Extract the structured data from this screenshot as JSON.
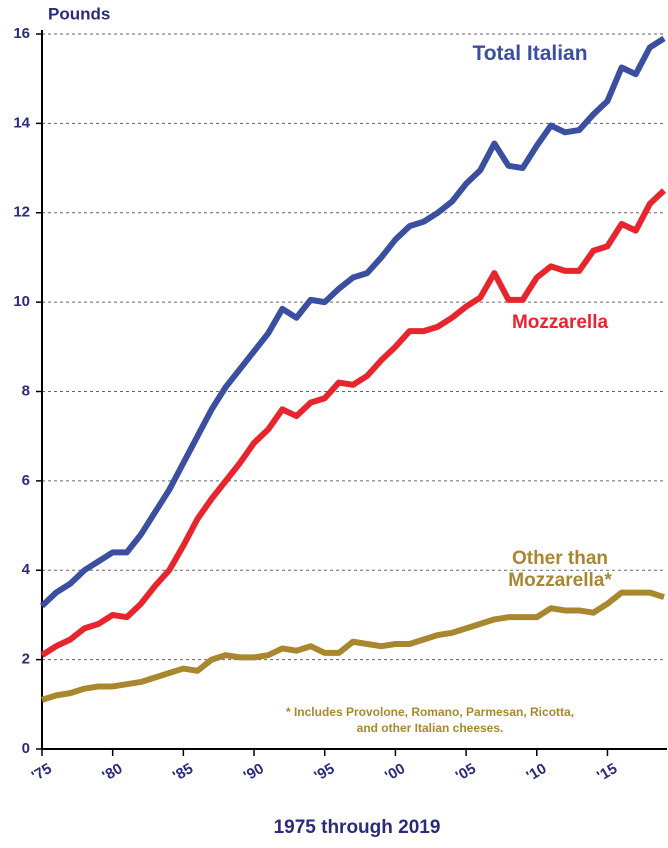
{
  "chart_data": {
    "type": "line",
    "y_label": "Pounds",
    "x_label": "1975 through 2019",
    "footnote": "* Includes Provolone, Romano, Parmesan, Ricotta, and other Italian cheeses.",
    "x": [
      1975,
      1976,
      1977,
      1978,
      1979,
      1980,
      1981,
      1982,
      1983,
      1984,
      1985,
      1986,
      1987,
      1988,
      1989,
      1990,
      1991,
      1992,
      1993,
      1994,
      1995,
      1996,
      1997,
      1998,
      1999,
      2000,
      2001,
      2002,
      2003,
      2004,
      2005,
      2006,
      2007,
      2008,
      2009,
      2010,
      2011,
      2012,
      2013,
      2014,
      2015,
      2016,
      2017,
      2018,
      2019
    ],
    "series": [
      {
        "name": "Total Italian",
        "color": "#3b4fa1",
        "values": [
          3.2,
          3.5,
          3.7,
          4.0,
          4.2,
          4.4,
          4.4,
          4.8,
          5.3,
          5.8,
          6.4,
          7.0,
          7.6,
          8.1,
          8.5,
          8.9,
          9.3,
          9.85,
          9.65,
          10.05,
          10.0,
          10.3,
          10.55,
          10.65,
          11.0,
          11.4,
          11.7,
          11.8,
          12.0,
          12.25,
          12.65,
          12.95,
          13.55,
          13.05,
          13.0,
          13.5,
          13.95,
          13.8,
          13.85,
          14.2,
          14.5,
          15.25,
          15.1,
          15.7,
          15.9
        ]
      },
      {
        "name": "Mozzarella",
        "color": "#e8252d",
        "values": [
          2.1,
          2.3,
          2.45,
          2.7,
          2.8,
          3.0,
          2.95,
          3.25,
          3.65,
          4.0,
          4.55,
          5.15,
          5.6,
          6.0,
          6.4,
          6.85,
          7.15,
          7.6,
          7.45,
          7.75,
          7.85,
          8.2,
          8.15,
          8.35,
          8.7,
          9.0,
          9.35,
          9.35,
          9.45,
          9.65,
          9.9,
          10.1,
          10.65,
          10.05,
          10.05,
          10.55,
          10.8,
          10.7,
          10.7,
          11.15,
          11.25,
          11.75,
          11.6,
          12.2,
          12.5
        ]
      },
      {
        "name": "Other than Mozzarella*",
        "color": "#a8872f",
        "values": [
          1.1,
          1.2,
          1.25,
          1.35,
          1.4,
          1.4,
          1.45,
          1.5,
          1.6,
          1.7,
          1.8,
          1.75,
          2.0,
          2.1,
          2.05,
          2.05,
          2.1,
          2.25,
          2.2,
          2.3,
          2.15,
          2.15,
          2.4,
          2.35,
          2.3,
          2.35,
          2.35,
          2.45,
          2.55,
          2.6,
          2.7,
          2.8,
          2.9,
          2.95,
          2.95,
          2.95,
          3.15,
          3.1,
          3.1,
          3.05,
          3.25,
          3.5,
          3.5,
          3.5,
          3.4
        ]
      }
    ],
    "xlim": [
      1975,
      2019
    ],
    "xticks": [
      {
        "value": 1975,
        "label": "'75"
      },
      {
        "value": 1980,
        "label": "'80"
      },
      {
        "value": 1985,
        "label": "'85"
      },
      {
        "value": 1990,
        "label": "'90"
      },
      {
        "value": 1995,
        "label": "'95"
      },
      {
        "value": 2000,
        "label": "'00"
      },
      {
        "value": 2005,
        "label": "'05"
      },
      {
        "value": 2010,
        "label": "'10"
      },
      {
        "value": 2015,
        "label": "'15"
      }
    ],
    "ylim": [
      0,
      16
    ],
    "yticks": [
      0,
      2,
      4,
      6,
      8,
      10,
      12,
      14,
      16
    ],
    "grid": true
  }
}
